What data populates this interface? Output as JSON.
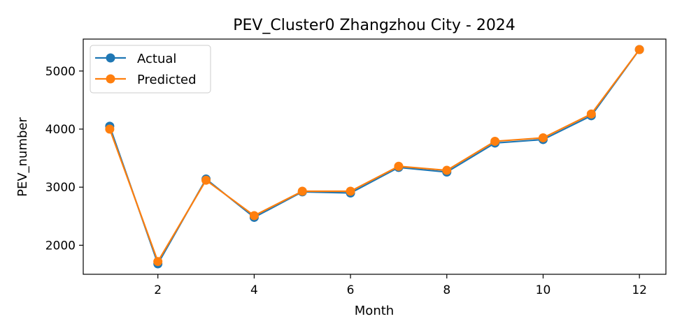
{
  "chart_data": {
    "type": "line",
    "title": "PEV_Cluster0 Zhangzhou City - 2024",
    "xlabel": "Month",
    "ylabel": "PEV_number",
    "xlim": [
      0.45,
      12.55
    ],
    "ylim": [
      1500,
      5550
    ],
    "xticks": [
      2,
      4,
      6,
      8,
      10,
      12
    ],
    "yticks": [
      2000,
      3000,
      4000,
      5000
    ],
    "grid": false,
    "legend_position": "top-left",
    "x": [
      1,
      2,
      3,
      4,
      5,
      6,
      7,
      8,
      9,
      10,
      11,
      12
    ],
    "series": [
      {
        "name": "Actual",
        "color": "#1f77b4",
        "values": [
          4050,
          1680,
          3140,
          2480,
          2920,
          2900,
          3340,
          3260,
          3760,
          3820,
          4230,
          5370
        ]
      },
      {
        "name": "Predicted",
        "color": "#ff7f0e",
        "values": [
          4000,
          1720,
          3120,
          2510,
          2930,
          2930,
          3360,
          3290,
          3790,
          3850,
          4260,
          5370
        ]
      }
    ]
  }
}
